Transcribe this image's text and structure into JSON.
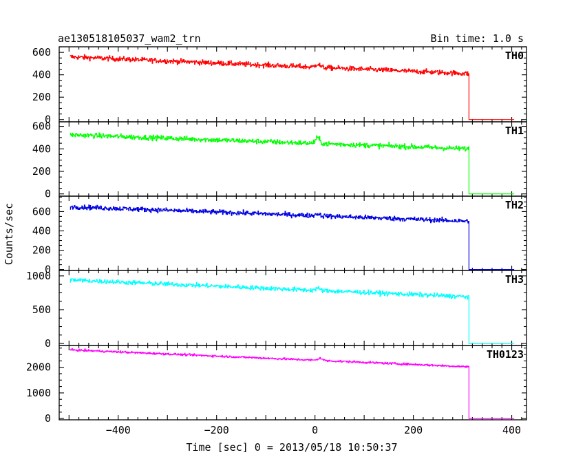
{
  "header": {
    "title": "ae130518105037_wam2_trn",
    "bin_time": "Bin time: 1.0 s"
  },
  "chart_data": {
    "type": "line",
    "xlabel": "Time [sec] 0 = 2013/05/18 10:50:37",
    "ylabel": "Counts/sec",
    "xlim": [
      -520,
      430
    ],
    "xticks": [
      -400,
      -200,
      0,
      200,
      400
    ],
    "x_end_drop": 312,
    "x_max_data": 405,
    "panels": [
      {
        "name": "TH0",
        "color": "#ff0000",
        "ylim": [
          -20,
          650
        ],
        "yticks": [
          0,
          200,
          400,
          600
        ],
        "start": 560,
        "end": 410,
        "noise": 22,
        "after": 0,
        "bump_x": 5,
        "bump_h": 30
      },
      {
        "name": "TH1",
        "color": "#00ff00",
        "ylim": [
          -20,
          640
        ],
        "yticks": [
          0,
          200,
          400,
          600
        ],
        "start": 525,
        "end": 400,
        "noise": 22,
        "after": 0,
        "bump_x": 5,
        "bump_h": 50
      },
      {
        "name": "TH2",
        "color": "#0000e0",
        "ylim": [
          -10,
          760
        ],
        "yticks": [
          0,
          200,
          400,
          600
        ],
        "start": 650,
        "end": 500,
        "noise": 24,
        "after": 0,
        "bump_x": 5,
        "bump_h": 20
      },
      {
        "name": "TH3",
        "color": "#00ffff",
        "ylim": [
          -30,
          1080
        ],
        "yticks": [
          0,
          500,
          1000
        ],
        "start": 940,
        "end": 690,
        "noise": 32,
        "after": 0,
        "bump_x": 5,
        "bump_h": 30
      },
      {
        "name": "TH0123",
        "color": "#ff00ff",
        "ylim": [
          -50,
          2850
        ],
        "yticks": [
          0,
          1000,
          2000
        ],
        "start": 2680,
        "end": 2020,
        "noise": 40,
        "after": 0,
        "bump_x": 10,
        "bump_h": 90
      }
    ]
  }
}
